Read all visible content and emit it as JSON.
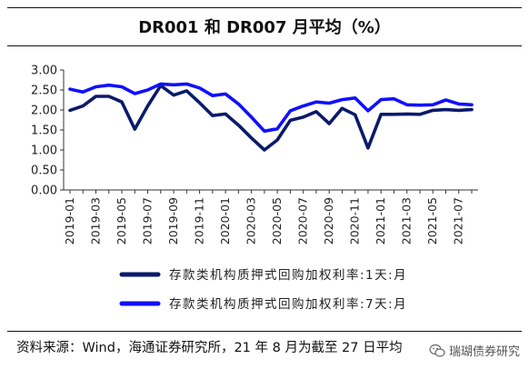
{
  "title": "DR001 和 DR007 月平均（%）",
  "source": "资料来源：Wind，海通证券研究所，21 年 8 月为截至 27 日平均",
  "watermark": "瑞瑚债券研究",
  "chart_data": {
    "type": "line",
    "x": [
      "2019-01",
      "2019-02",
      "2019-03",
      "2019-04",
      "2019-05",
      "2019-06",
      "2019-07",
      "2019-08",
      "2019-09",
      "2019-10",
      "2019-11",
      "2019-12",
      "2020-01",
      "2020-02",
      "2020-03",
      "2020-04",
      "2020-05",
      "2020-06",
      "2020-07",
      "2020-08",
      "2020-09",
      "2020-10",
      "2020-11",
      "2020-12",
      "2021-01",
      "2021-02",
      "2021-03",
      "2021-04",
      "2021-05",
      "2021-06",
      "2021-07",
      "2021-08"
    ],
    "tick_labels": [
      "2019-01",
      "2019-03",
      "2019-05",
      "2019-07",
      "2019-09",
      "2019-11",
      "2020-01",
      "2020-03",
      "2020-05",
      "2020-07",
      "2020-09",
      "2020-11",
      "2021-01",
      "2021-03",
      "2021-05",
      "2021-07"
    ],
    "ylim": [
      0,
      3
    ],
    "yticks": [
      "0.00",
      "0.50",
      "1.00",
      "1.50",
      "2.00",
      "2.50",
      "3.00"
    ],
    "grid": false,
    "legend_position": "bottom",
    "series": [
      {
        "name": "存款类机构质押式回购加权利率:1天:月",
        "color": "#0a1a6b",
        "values": [
          1.99,
          2.1,
          2.34,
          2.34,
          2.2,
          1.52,
          2.1,
          2.61,
          2.37,
          2.48,
          2.18,
          1.86,
          1.9,
          1.62,
          1.3,
          1.0,
          1.25,
          1.74,
          1.82,
          1.96,
          1.66,
          2.04,
          1.88,
          1.05,
          1.89,
          1.89,
          1.9,
          1.89,
          1.99,
          2.01,
          1.99,
          2.01
        ]
      },
      {
        "name": "存款类机构质押式回购加权利率:7天:月",
        "color": "#1010ff",
        "values": [
          2.52,
          2.45,
          2.58,
          2.62,
          2.58,
          2.41,
          2.5,
          2.65,
          2.63,
          2.65,
          2.55,
          2.36,
          2.4,
          2.15,
          1.82,
          1.47,
          1.53,
          1.98,
          2.1,
          2.2,
          2.17,
          2.26,
          2.3,
          1.98,
          2.26,
          2.28,
          2.13,
          2.12,
          2.13,
          2.25,
          2.15,
          2.13
        ]
      }
    ]
  }
}
